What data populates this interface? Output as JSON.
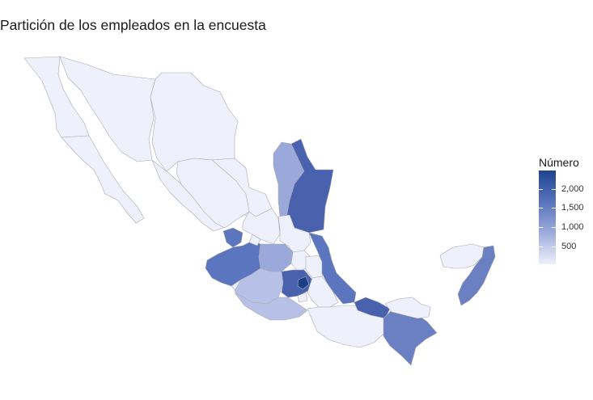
{
  "title": "Partición de los empleados en la encuesta",
  "legend": {
    "title": "Número",
    "labels": [
      "2,000",
      "1,500",
      "1,000",
      "500"
    ],
    "colors": {
      "high": "#1f4490",
      "mid": "#5b76be",
      "low": "#9aa9da",
      "min": "#eef1fc"
    }
  },
  "map_regions": [
    {
      "name": "Baja California",
      "shade": "min"
    },
    {
      "name": "Baja California Sur",
      "shade": "min"
    },
    {
      "name": "Sonora",
      "shade": "min"
    },
    {
      "name": "Chihuahua",
      "shade": "min"
    },
    {
      "name": "Coahuila",
      "shade": "min"
    },
    {
      "name": "Nuevo León",
      "shade": "low"
    },
    {
      "name": "Tamaulipas",
      "shade": "high"
    },
    {
      "name": "Sinaloa",
      "shade": "min"
    },
    {
      "name": "Durango",
      "shade": "min"
    },
    {
      "name": "Zacatecas",
      "shade": "min"
    },
    {
      "name": "San Luis Potosí",
      "shade": "min"
    },
    {
      "name": "Nayarit",
      "shade": "mid"
    },
    {
      "name": "Jalisco",
      "shade": "mid"
    },
    {
      "name": "Aguascalientes",
      "shade": "min"
    },
    {
      "name": "Guanajuato",
      "shade": "low"
    },
    {
      "name": "Querétaro",
      "shade": "min"
    },
    {
      "name": "Hidalgo",
      "shade": "min"
    },
    {
      "name": "Veracruz",
      "shade": "mid"
    },
    {
      "name": "Colima",
      "shade": "min"
    },
    {
      "name": "Michoacán",
      "shade": "low"
    },
    {
      "name": "Estado de México",
      "shade": "high"
    },
    {
      "name": "Ciudad de México",
      "shade": "darkest"
    },
    {
      "name": "Morelos",
      "shade": "min"
    },
    {
      "name": "Tlaxcala",
      "shade": "low"
    },
    {
      "name": "Puebla",
      "shade": "min"
    },
    {
      "name": "Guerrero",
      "shade": "low"
    },
    {
      "name": "Oaxaca",
      "shade": "min"
    },
    {
      "name": "Tabasco",
      "shade": "high"
    },
    {
      "name": "Chiapas",
      "shade": "mid"
    },
    {
      "name": "Campeche",
      "shade": "min"
    },
    {
      "name": "Yucatán",
      "shade": "min"
    },
    {
      "name": "Quintana Roo",
      "shade": "mid"
    }
  ]
}
